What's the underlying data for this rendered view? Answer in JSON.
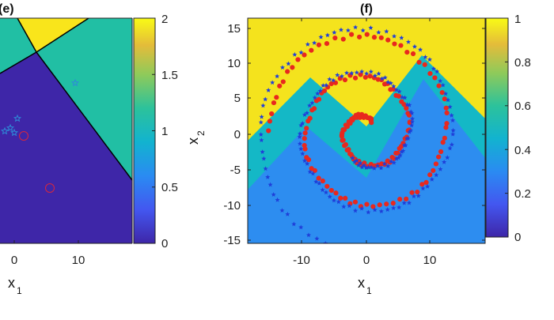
{
  "chart_data": [
    {
      "type": "heatmap",
      "panel_label": "(e)",
      "x_tick_labels": [
        "0",
        "10"
      ],
      "xlabel": "x",
      "xlabel_subscript": "1",
      "colorbar": {
        "ticks": [
          "0",
          "0.5",
          "1",
          "1.5",
          "2"
        ],
        "range": [
          0,
          2
        ]
      },
      "regions": [
        {
          "class_value": 0,
          "color": "#3e26a8"
        },
        {
          "class_value": 1,
          "color": "#21bfa4"
        },
        {
          "class_value": 2,
          "color": "#f9e51b"
        }
      ],
      "boundary_color": "#000000",
      "markers": [
        {
          "symbol": "star",
          "color": "#2e8ad8"
        },
        {
          "symbol": "circle",
          "color": "#d7263d"
        }
      ]
    },
    {
      "type": "heatmap",
      "panel_label": "(f)",
      "x_tick_labels": [
        "-10",
        "0",
        "10"
      ],
      "y_tick_labels": [
        "15",
        "10",
        "5",
        "0",
        "-5",
        "-10",
        "-15"
      ],
      "xlabel": "x",
      "xlabel_subscript": "1",
      "ylabel": "x",
      "ylabel_subscript": "2",
      "xlim": [
        -18.5,
        18.5
      ],
      "ylim": [
        -16.5,
        16.5
      ],
      "colorbar": {
        "ticks": [
          "0",
          "0.2",
          "0.4",
          "0.6",
          "0.8",
          "1"
        ],
        "range": [
          0,
          1
        ]
      },
      "background": {
        "low_color": "#2d8df0",
        "mid_color": "#14b8c6",
        "high_color": "#f4e31d"
      },
      "series": [
        {
          "name": "",
          "color": "#e8281e",
          "marker": "o",
          "a": 0.5,
          "b": 0.95,
          "theta_start_deg": 60,
          "theta_end_deg": 900
        },
        {
          "name": "",
          "color": "#1f3fd9",
          "marker": "*",
          "a": 0.5,
          "b": 1.02,
          "theta_start_deg": 240,
          "theta_end_deg": 1000
        }
      ]
    }
  ]
}
